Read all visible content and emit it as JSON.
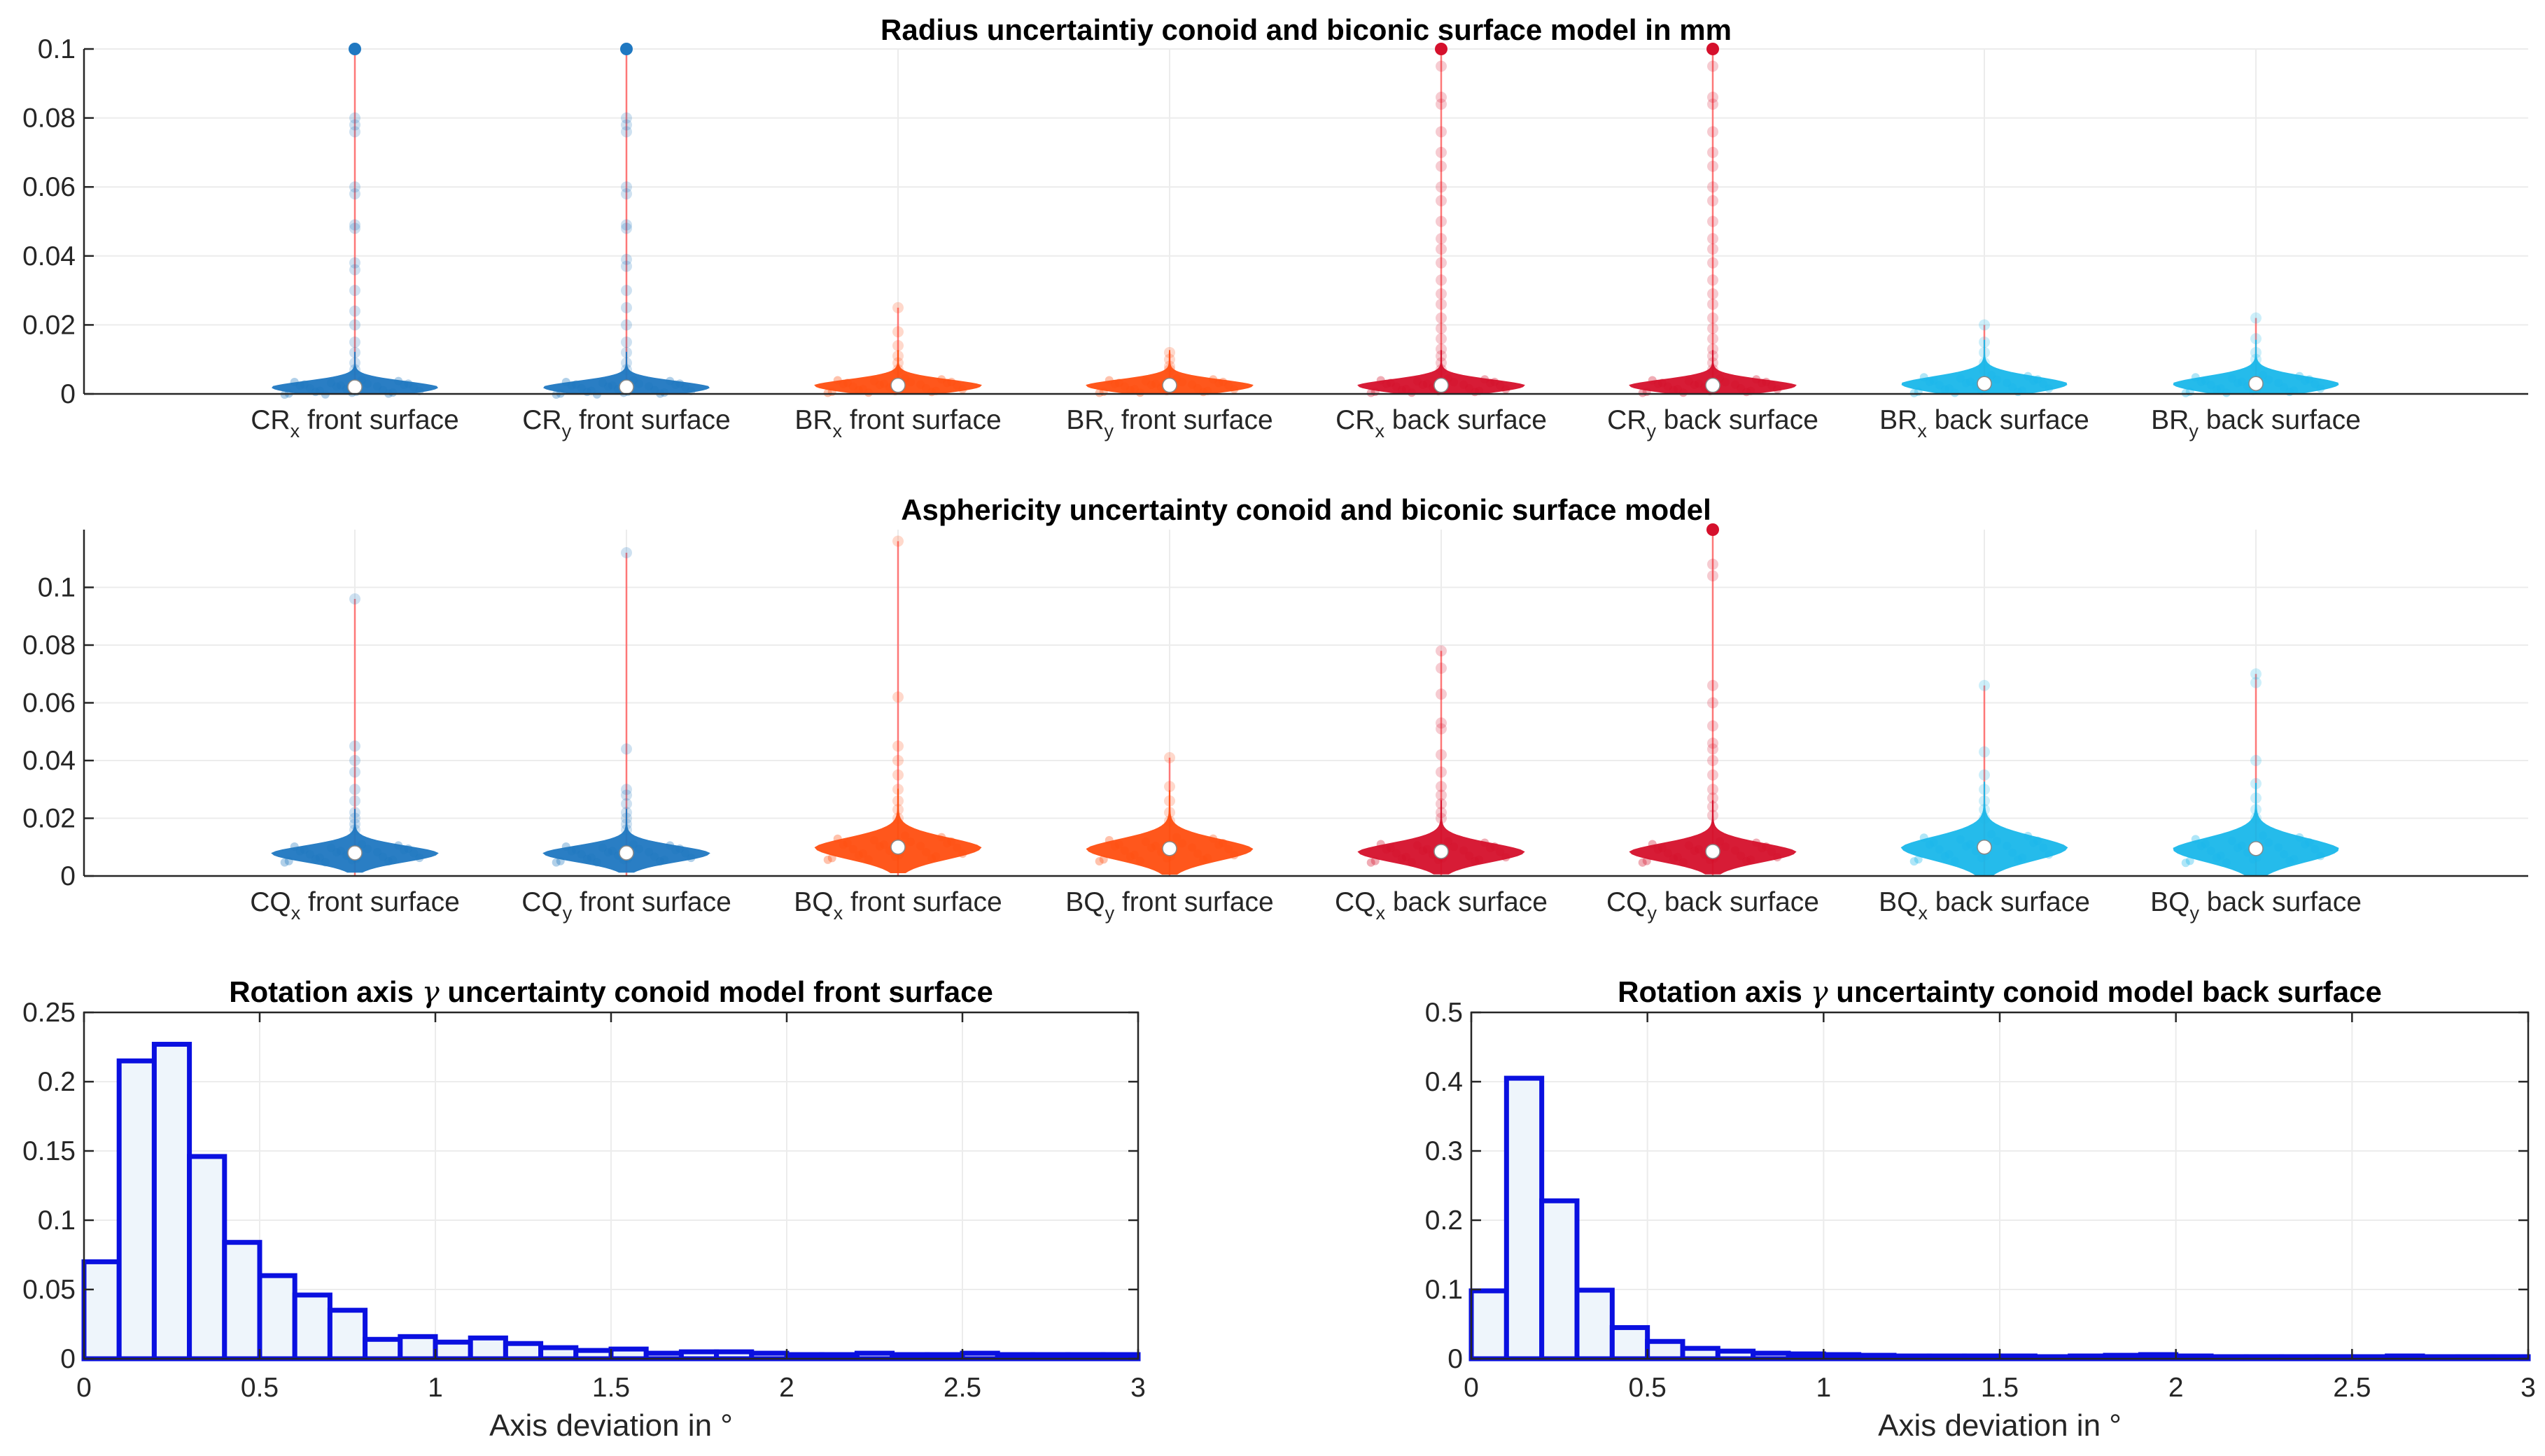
{
  "chart_data": [
    {
      "type": "violin",
      "title": "Radius uncertaintiy conoid and biconic surface model in mm",
      "ylim": [
        0,
        0.1
      ],
      "yticks": [
        "0",
        "0.02",
        "0.04",
        "0.06",
        "0.08",
        "0.1"
      ],
      "categories": [
        {
          "main": "CR",
          "sub": "x",
          "rest": " front surface",
          "color": "#1f78c1",
          "median": 0.002,
          "max": 0.1,
          "spread": 0.002,
          "outliers": [
            0.1,
            0.08,
            0.078,
            0.076,
            0.06,
            0.058,
            0.049,
            0.048,
            0.038,
            0.036,
            0.03,
            0.024,
            0.02,
            0.015,
            0.012,
            0.009,
            0.007
          ]
        },
        {
          "main": "CR",
          "sub": "y",
          "rest": " front surface",
          "color": "#1f78c1",
          "median": 0.002,
          "max": 0.1,
          "spread": 0.002,
          "outliers": [
            0.1,
            0.08,
            0.078,
            0.076,
            0.06,
            0.058,
            0.049,
            0.048,
            0.039,
            0.037,
            0.03,
            0.025,
            0.02,
            0.015,
            0.012,
            0.009,
            0.007
          ]
        },
        {
          "main": "BR",
          "sub": "x",
          "rest": " front surface",
          "color": "#ff4f10",
          "median": 0.0025,
          "max": 0.025,
          "spread": 0.002,
          "outliers": [
            0.025,
            0.018,
            0.014,
            0.011,
            0.009,
            0.007
          ]
        },
        {
          "main": "BR",
          "sub": "y",
          "rest": " front surface",
          "color": "#ff4f10",
          "median": 0.0025,
          "max": 0.012,
          "spread": 0.002,
          "outliers": [
            0.012,
            0.01,
            0.008,
            0.007
          ]
        },
        {
          "main": "CR",
          "sub": "x",
          "rest": " back surface",
          "color": "#d5102c",
          "median": 0.0025,
          "max": 0.1,
          "spread": 0.002,
          "outliers": [
            0.1,
            0.095,
            0.086,
            0.084,
            0.076,
            0.07,
            0.066,
            0.06,
            0.056,
            0.05,
            0.045,
            0.042,
            0.038,
            0.033,
            0.029,
            0.026,
            0.022,
            0.019,
            0.016,
            0.013,
            0.011,
            0.009,
            0.007
          ]
        },
        {
          "main": "CR",
          "sub": "y",
          "rest": " back surface",
          "color": "#d5102c",
          "median": 0.0025,
          "max": 0.1,
          "spread": 0.002,
          "outliers": [
            0.1,
            0.095,
            0.086,
            0.084,
            0.076,
            0.07,
            0.066,
            0.06,
            0.056,
            0.05,
            0.045,
            0.042,
            0.038,
            0.033,
            0.029,
            0.026,
            0.022,
            0.019,
            0.016,
            0.013,
            0.011,
            0.009,
            0.007
          ]
        },
        {
          "main": "BR",
          "sub": "x",
          "rest": " back surface",
          "color": "#1ab8ea",
          "median": 0.003,
          "max": 0.02,
          "spread": 0.0025,
          "outliers": [
            0.02,
            0.015,
            0.012,
            0.009,
            0.007
          ]
        },
        {
          "main": "BR",
          "sub": "y",
          "rest": " back surface",
          "color": "#1ab8ea",
          "median": 0.003,
          "max": 0.022,
          "spread": 0.0025,
          "outliers": [
            0.022,
            0.016,
            0.012,
            0.01,
            0.008
          ]
        }
      ]
    },
    {
      "type": "violin",
      "title": "Asphericity uncertainty conoid and biconic surface model",
      "ylim": [
        0,
        0.12
      ],
      "yticks": [
        "0",
        "0.02",
        "0.04",
        "0.06",
        "0.08",
        "0.1"
      ],
      "categories": [
        {
          "main": "CQ",
          "sub": "x",
          "rest": " front surface",
          "color": "#1f78c1",
          "median": 0.008,
          "max": 0.096,
          "spread": 0.003,
          "outliers": [
            0.096,
            0.045,
            0.04,
            0.036,
            0.03,
            0.026,
            0.022,
            0.02,
            0.018,
            0.016
          ]
        },
        {
          "main": "CQ",
          "sub": "y",
          "rest": " front surface",
          "color": "#1f78c1",
          "median": 0.008,
          "max": 0.112,
          "spread": 0.003,
          "outliers": [
            0.112,
            0.044,
            0.03,
            0.028,
            0.025,
            0.022,
            0.02,
            0.018,
            0.016
          ]
        },
        {
          "main": "BQ",
          "sub": "x",
          "rest": " front surface",
          "color": "#ff4f10",
          "median": 0.01,
          "max": 0.116,
          "spread": 0.004,
          "outliers": [
            0.116,
            0.062,
            0.045,
            0.04,
            0.035,
            0.03,
            0.026,
            0.023,
            0.02
          ]
        },
        {
          "main": "BQ",
          "sub": "y",
          "rest": " front surface",
          "color": "#ff4f10",
          "median": 0.0095,
          "max": 0.041,
          "spread": 0.004,
          "outliers": [
            0.041,
            0.031,
            0.026,
            0.022,
            0.019
          ]
        },
        {
          "main": "CQ",
          "sub": "x",
          "rest": " back surface",
          "color": "#d5102c",
          "median": 0.0085,
          "max": 0.078,
          "spread": 0.0035,
          "outliers": [
            0.078,
            0.072,
            0.063,
            0.053,
            0.051,
            0.042,
            0.036,
            0.031,
            0.028,
            0.025,
            0.022,
            0.02
          ]
        },
        {
          "main": "CQ",
          "sub": "y",
          "rest": " back surface",
          "color": "#d5102c",
          "median": 0.0085,
          "max": 0.12,
          "spread": 0.0035,
          "outliers": [
            0.12,
            0.108,
            0.104,
            0.066,
            0.06,
            0.052,
            0.046,
            0.044,
            0.04,
            0.035,
            0.03,
            0.027,
            0.024,
            0.021
          ]
        },
        {
          "main": "BQ",
          "sub": "x",
          "rest": " back surface",
          "color": "#1ab8ea",
          "median": 0.01,
          "max": 0.066,
          "spread": 0.0045,
          "outliers": [
            0.066,
            0.043,
            0.035,
            0.03,
            0.026,
            0.023,
            0.02
          ]
        },
        {
          "main": "BQ",
          "sub": "y",
          "rest": " back surface",
          "color": "#1ab8ea",
          "median": 0.0095,
          "max": 0.07,
          "spread": 0.0045,
          "outliers": [
            0.07,
            0.067,
            0.04,
            0.032,
            0.027,
            0.023,
            0.02
          ]
        }
      ]
    },
    {
      "type": "histogram",
      "title_pre": "Rotation axis ",
      "title_symbol": "γ",
      "title_post": " uncertainty conoid model front surface",
      "xlabel": "Axis deviation in °",
      "xlim": [
        0,
        3
      ],
      "ylim": [
        0,
        0.25
      ],
      "xticks": [
        [
          "0",
          0
        ],
        [
          "0.5",
          0.5
        ],
        [
          "1",
          1
        ],
        [
          "1.5",
          1.5
        ],
        [
          "2",
          2
        ],
        [
          "2.5",
          2.5
        ],
        [
          "3",
          3
        ]
      ],
      "yticks": [
        [
          "0",
          0
        ],
        [
          "0.05",
          0.05
        ],
        [
          "0.1",
          0.1
        ],
        [
          "0.15",
          0.15
        ],
        [
          "0.2",
          0.2
        ],
        [
          "0.25",
          0.25
        ]
      ],
      "bin_width": 0.1,
      "values": [
        0.07,
        0.215,
        0.227,
        0.146,
        0.084,
        0.06,
        0.046,
        0.035,
        0.014,
        0.016,
        0.012,
        0.015,
        0.011,
        0.008,
        0.006,
        0.007,
        0.004,
        0.005,
        0.005,
        0.004,
        0.003,
        0.003,
        0.004,
        0.003,
        0.003,
        0.004,
        0.003,
        0.003,
        0.003,
        0.003
      ]
    },
    {
      "type": "histogram",
      "title_pre": "Rotation axis ",
      "title_symbol": "γ",
      "title_post": " uncertainty conoid model back surface",
      "xlabel": "Axis deviation in °",
      "xlim": [
        0,
        3
      ],
      "ylim": [
        0,
        0.5
      ],
      "xticks": [
        [
          "0",
          0
        ],
        [
          "0.5",
          0.5
        ],
        [
          "1",
          1
        ],
        [
          "1.5",
          1.5
        ],
        [
          "2",
          2
        ],
        [
          "2.5",
          2.5
        ],
        [
          "3",
          3
        ]
      ],
      "yticks": [
        [
          "0",
          0
        ],
        [
          "0.1",
          0.1
        ],
        [
          "0.2",
          0.2
        ],
        [
          "0.3",
          0.3
        ],
        [
          "0.4",
          0.4
        ],
        [
          "0.5",
          0.5
        ]
      ],
      "bin_width": 0.1,
      "values": [
        0.098,
        0.405,
        0.228,
        0.099,
        0.045,
        0.025,
        0.015,
        0.011,
        0.008,
        0.007,
        0.006,
        0.005,
        0.004,
        0.004,
        0.004,
        0.004,
        0.003,
        0.004,
        0.005,
        0.006,
        0.004,
        0.003,
        0.003,
        0.003,
        0.003,
        0.003,
        0.004,
        0.003,
        0.003,
        0.003
      ]
    }
  ]
}
